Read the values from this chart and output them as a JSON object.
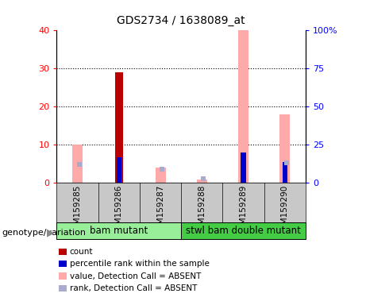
{
  "title": "GDS2734 / 1638089_at",
  "samples": [
    "GSM159285",
    "GSM159286",
    "GSM159287",
    "GSM159288",
    "GSM159289",
    "GSM159290"
  ],
  "count_values": [
    0,
    29,
    0,
    0,
    0,
    0
  ],
  "percentile_rank_values": [
    0,
    17,
    0,
    0,
    20,
    14
  ],
  "pink_bar_values": [
    10,
    0,
    4,
    1,
    40,
    18
  ],
  "blue_square_values": [
    12,
    0,
    9,
    3,
    0,
    13
  ],
  "count_color": "#bb0000",
  "percentile_color": "#0000cc",
  "pink_color": "#ffaaaa",
  "blue_sq_color": "#aaaacc",
  "left_ylim": [
    0,
    40
  ],
  "right_ylim": [
    0,
    100
  ],
  "left_yticks": [
    0,
    10,
    20,
    30,
    40
  ],
  "right_yticks": [
    0,
    25,
    50,
    75,
    100
  ],
  "right_yticklabels": [
    "0",
    "25",
    "50",
    "75",
    "100%"
  ],
  "grid_values": [
    10,
    20,
    30
  ],
  "group1_label": "bam mutant",
  "group2_label": "stwl bam double mutant",
  "group1_color": "#99ee99",
  "group2_color": "#44cc44",
  "group_label_text": "genotype/variation",
  "legend_items": [
    {
      "color": "#bb0000",
      "label": "count"
    },
    {
      "color": "#0000cc",
      "label": "percentile rank within the sample"
    },
    {
      "color": "#ffaaaa",
      "label": "value, Detection Call = ABSENT"
    },
    {
      "color": "#aaaacc",
      "label": "rank, Detection Call = ABSENT"
    }
  ],
  "bg_color": "#c8c8c8",
  "plot_bg": "#ffffff"
}
